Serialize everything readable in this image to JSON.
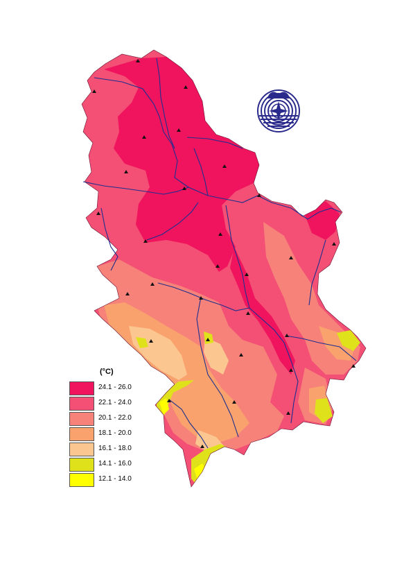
{
  "legend": {
    "title": "(°C)",
    "items": [
      {
        "label": "24.1 - 26.0",
        "color": "#f0145f"
      },
      {
        "label": "22.1 - 24.0",
        "color": "#f44f74"
      },
      {
        "label": "20.1 - 22.0",
        "color": "#f7827a"
      },
      {
        "label": "18.1 - 20.0",
        "color": "#f9a26e"
      },
      {
        "label": "16.1 - 18.0",
        "color": "#fcc690"
      },
      {
        "label": "14.1 - 16.0",
        "color": "#dfe11a"
      },
      {
        "label": "12.1 - 14.0",
        "color": "#ffff00"
      }
    ]
  },
  "logo": {
    "icon": "compass-rose-logo-icon",
    "color": "#2a2a8c"
  },
  "stations": {
    "count": 30,
    "icon": "triangle-station-icon"
  },
  "rivers": {
    "color": "#1b2f8f"
  }
}
